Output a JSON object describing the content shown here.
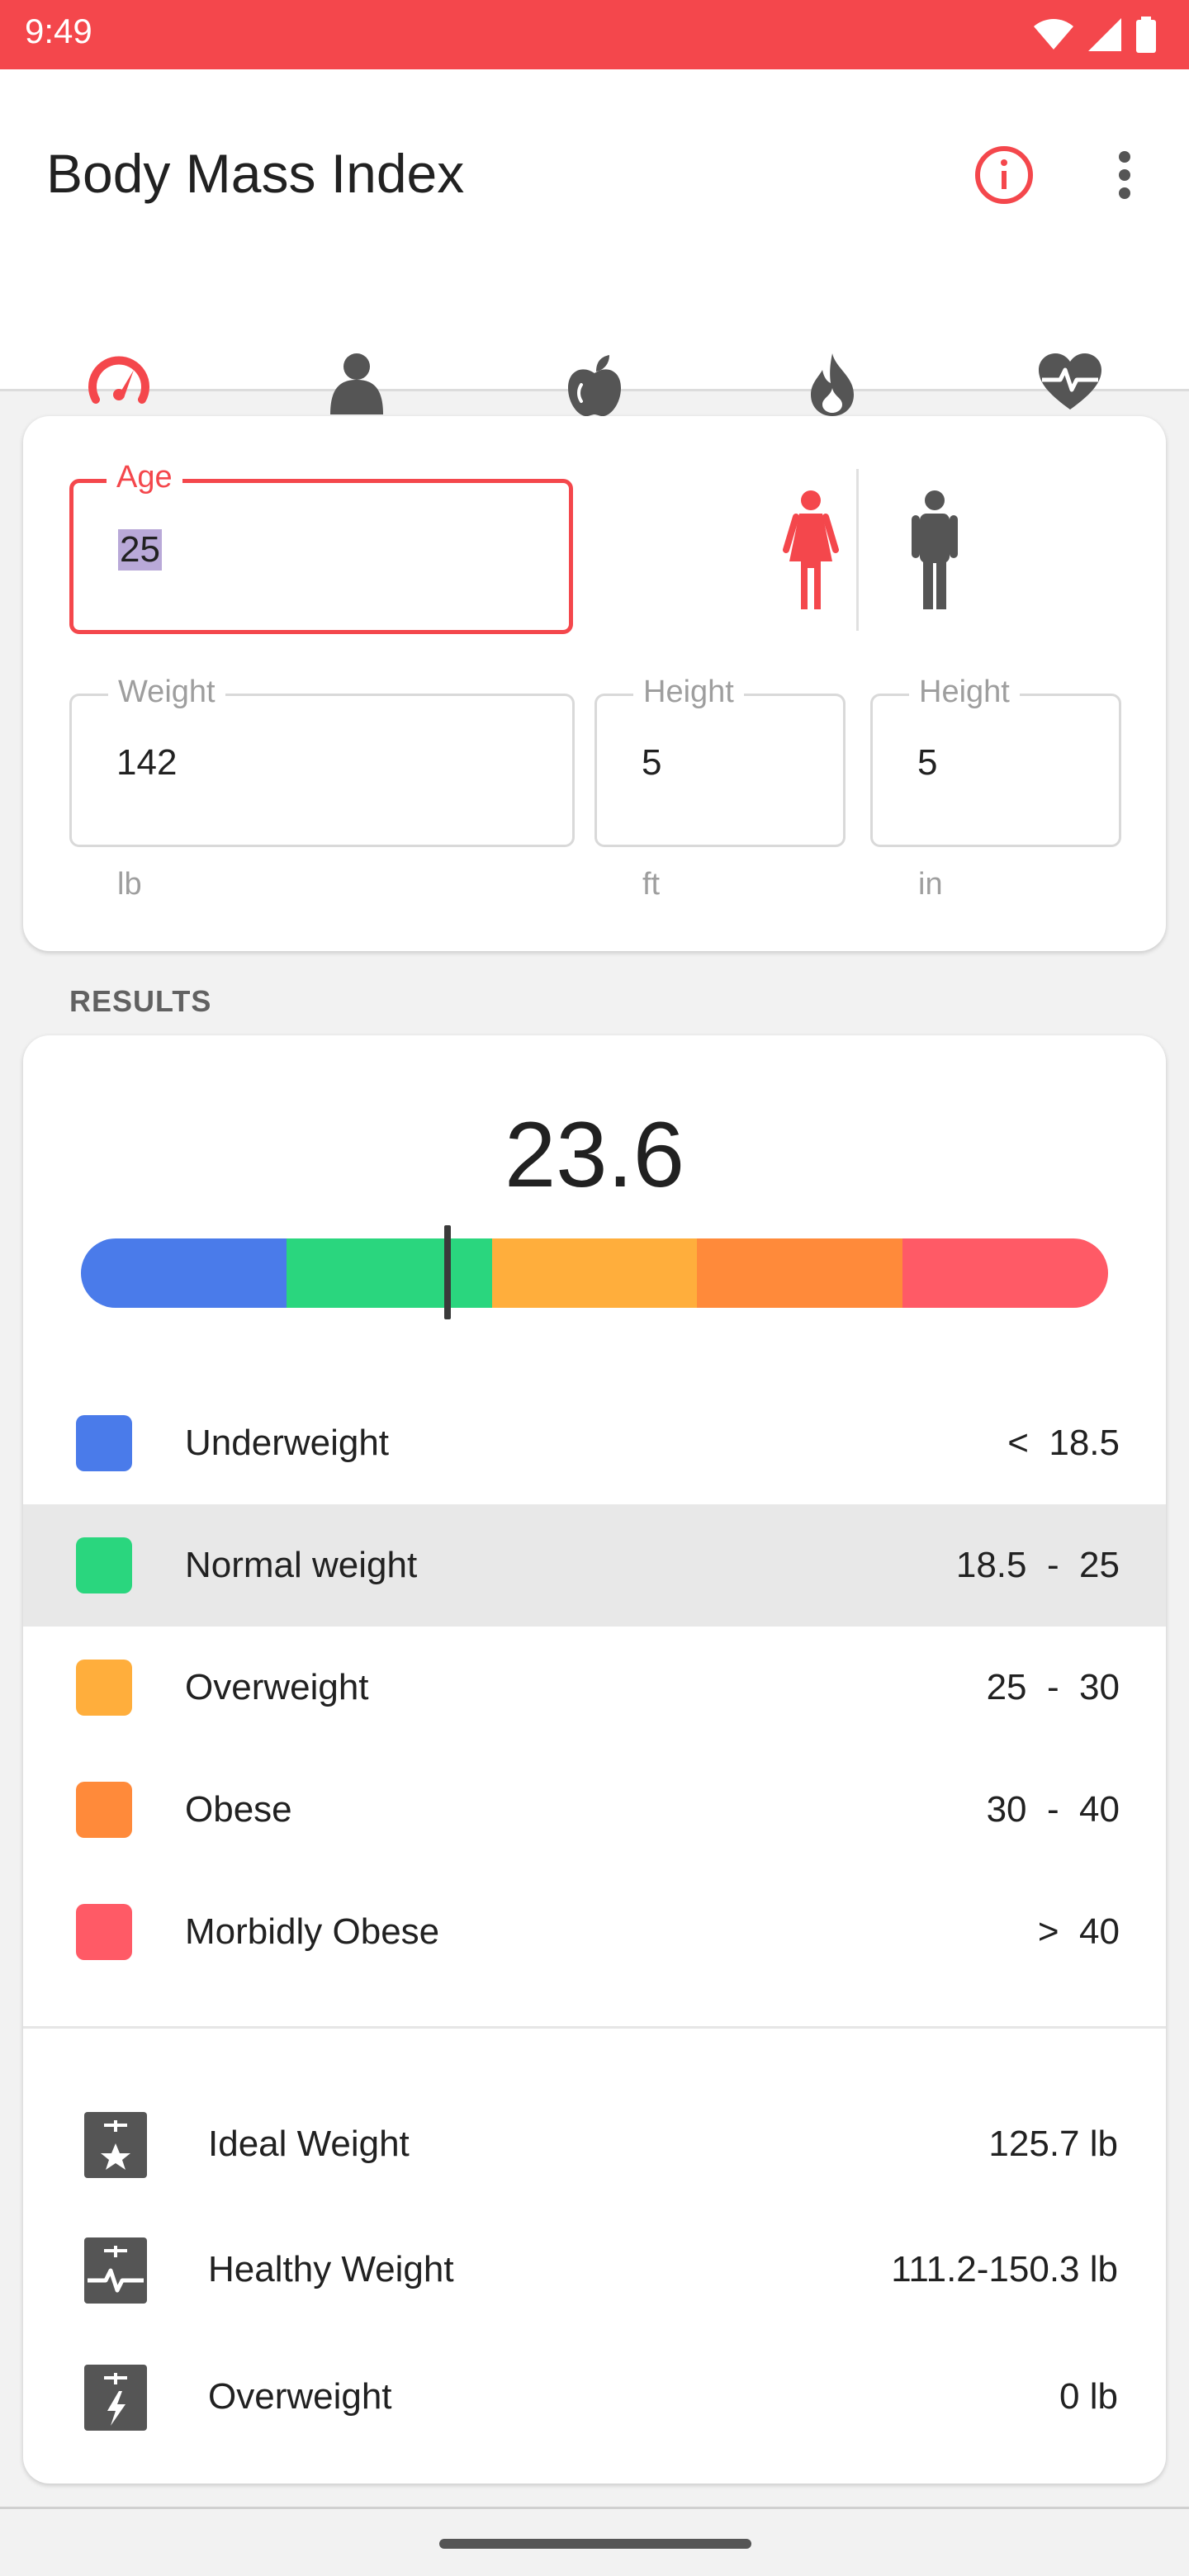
{
  "status_bar": {
    "time": "9:49"
  },
  "app_bar": {
    "title": "Body Mass Index"
  },
  "tabs": [
    {
      "icon": "speedometer-icon",
      "selected": true
    },
    {
      "icon": "body-icon",
      "selected": false
    },
    {
      "icon": "apple-icon",
      "selected": false
    },
    {
      "icon": "flame-icon",
      "selected": false
    },
    {
      "icon": "heartbeat-icon",
      "selected": false
    }
  ],
  "inputs": {
    "age": {
      "label": "Age",
      "value": "25"
    },
    "weight": {
      "label": "Weight",
      "value": "142",
      "unit": "lb"
    },
    "height_ft": {
      "label": "Height",
      "value": "5",
      "unit": "ft"
    },
    "height_in": {
      "label": "Height",
      "value": "5",
      "unit": "in"
    },
    "gender_selected": "female"
  },
  "results": {
    "section_label": "RESULTS",
    "bmi": "23.6",
    "bmi_marker_position": 23.6,
    "scale_colors": [
      "#4a7bea",
      "#2ad67e",
      "#ffae3c",
      "#ff8a3a",
      "#ff5a66"
    ],
    "categories": [
      {
        "name": "Underweight",
        "range": "<  18.5",
        "color": "#4a7bea",
        "highlight": false
      },
      {
        "name": "Normal weight",
        "range": "18.5  -  25",
        "color": "#2ad67e",
        "highlight": true
      },
      {
        "name": "Overweight",
        "range": "25  -  30",
        "color": "#ffae3c",
        "highlight": false
      },
      {
        "name": "Obese",
        "range": "30  -  40",
        "color": "#ff8a3a",
        "highlight": false
      },
      {
        "name": "Morbidly Obese",
        "range": ">  40",
        "color": "#ff5a66",
        "highlight": false
      }
    ],
    "stats": [
      {
        "icon": "scale-star-icon",
        "label": "Ideal Weight",
        "value": "125.7 lb"
      },
      {
        "icon": "scale-pulse-icon",
        "label": "Healthy Weight",
        "value": "111.2-150.3 lb"
      },
      {
        "icon": "scale-bolt-icon",
        "label": "Overweight",
        "value": "0 lb"
      }
    ]
  },
  "colors": {
    "accent": "#f4474c",
    "icon_gray": "#555555"
  }
}
